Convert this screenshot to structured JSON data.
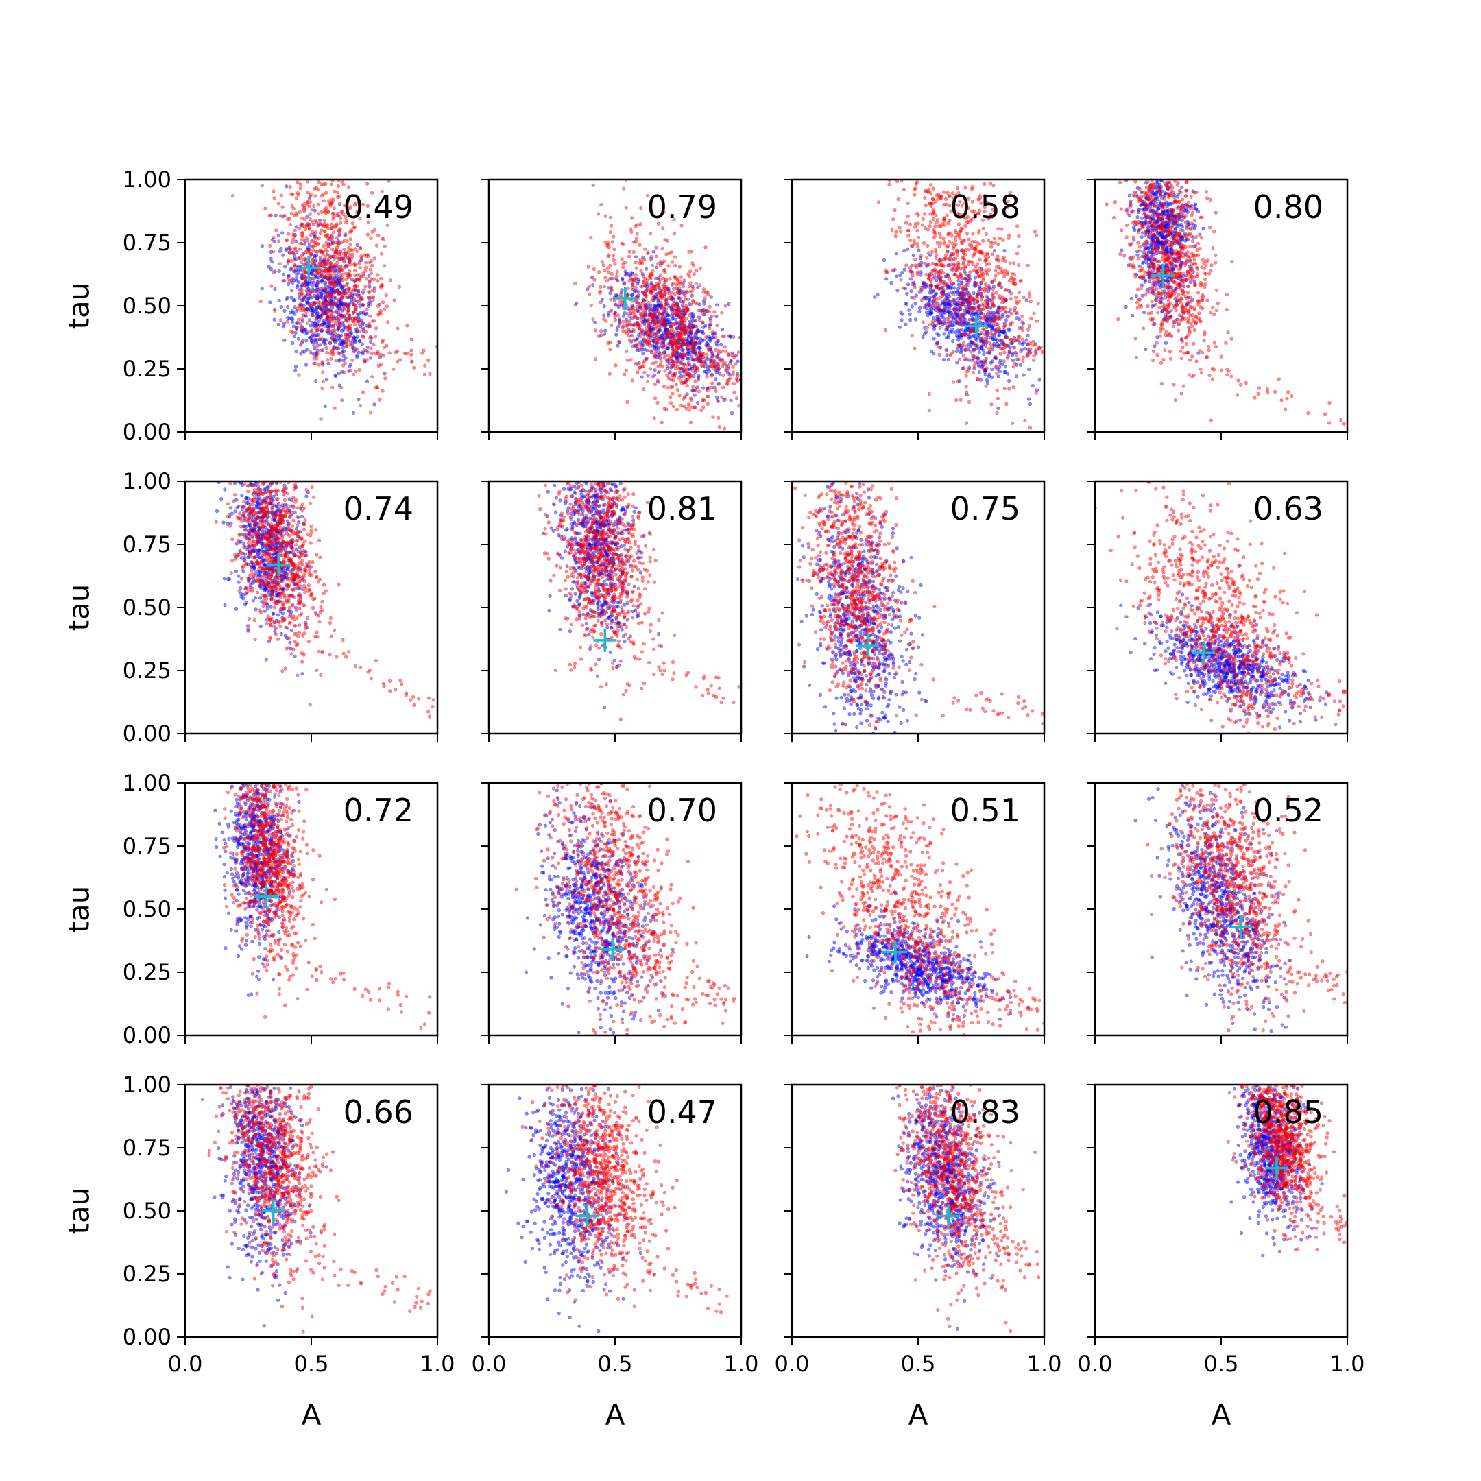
{
  "colors": {
    "series_blue": "#0000ff",
    "series_red": "#ff0000",
    "marker": "#17becf",
    "axes": "#000000",
    "background": "#ffffff"
  },
  "chart_data": {
    "type": "scatter",
    "layout": "4x4 grid of subplots, shared x and y axes",
    "xlabel": "A",
    "ylabel": "tau",
    "xlim": [
      0.0,
      1.0
    ],
    "ylim": [
      0.0,
      1.0
    ],
    "xticks": [
      "0.0",
      "0.5",
      "1.0"
    ],
    "yticks": [
      "0.00",
      "0.25",
      "0.50",
      "0.75",
      "1.00"
    ],
    "grid": false,
    "legend": "none",
    "series": [
      {
        "color": "blue",
        "marker": "dot"
      },
      {
        "color": "red",
        "marker": "dot"
      },
      {
        "color": "cyan",
        "marker": "plus"
      }
    ],
    "panels": [
      {
        "annotation": "0.49",
        "marker": [
          0.49,
          0.65
        ],
        "blue": {
          "center": [
            0.55,
            0.52
          ],
          "spread": [
            0.09,
            0.13
          ],
          "slope": -0.55
        },
        "red": {
          "center": [
            0.58,
            0.65
          ],
          "spread": [
            0.11,
            0.2
          ],
          "slope": -0.7
        },
        "red_tail": [
          [
            0.75,
            0.33
          ],
          [
            0.98,
            0.28
          ]
        ]
      },
      {
        "annotation": "0.79",
        "marker": [
          0.54,
          0.53
        ],
        "blue": {
          "center": [
            0.73,
            0.4
          ],
          "spread": [
            0.12,
            0.09
          ],
          "slope": -0.5
        },
        "red": {
          "center": [
            0.7,
            0.43
          ],
          "spread": [
            0.12,
            0.15
          ],
          "slope": -0.7
        },
        "red_tail": [
          [
            0.88,
            0.27
          ],
          [
            0.99,
            0.22
          ]
        ]
      },
      {
        "annotation": "0.58",
        "marker": [
          0.73,
          0.42
        ],
        "blue": {
          "center": [
            0.7,
            0.45
          ],
          "spread": [
            0.12,
            0.1
          ],
          "slope": -0.45
        },
        "red": {
          "center": [
            0.68,
            0.65
          ],
          "spread": [
            0.13,
            0.22
          ],
          "slope": -0.8
        },
        "red_tail": [
          [
            0.85,
            0.36
          ],
          [
            1.0,
            0.32
          ]
        ]
      },
      {
        "annotation": "0.80",
        "marker": [
          0.27,
          0.62
        ],
        "blue": {
          "center": [
            0.27,
            0.78
          ],
          "spread": [
            0.06,
            0.16
          ],
          "slope": -0.4
        },
        "red": {
          "center": [
            0.3,
            0.7
          ],
          "spread": [
            0.08,
            0.22
          ],
          "slope": -0.9
        },
        "red_tail": [
          [
            0.45,
            0.25
          ],
          [
            1.0,
            0.05
          ]
        ]
      },
      {
        "annotation": "0.74",
        "marker": [
          0.37,
          0.67
        ],
        "blue": {
          "center": [
            0.33,
            0.75
          ],
          "spread": [
            0.07,
            0.16
          ],
          "slope": -0.55
        },
        "red": {
          "center": [
            0.36,
            0.75
          ],
          "spread": [
            0.08,
            0.17
          ],
          "slope": -0.9
        },
        "red_tail": [
          [
            0.55,
            0.35
          ],
          [
            1.0,
            0.08
          ]
        ]
      },
      {
        "annotation": "0.81",
        "marker": [
          0.46,
          0.37
        ],
        "blue": {
          "center": [
            0.43,
            0.75
          ],
          "spread": [
            0.07,
            0.18
          ],
          "slope": -0.5
        },
        "red": {
          "center": [
            0.45,
            0.72
          ],
          "spread": [
            0.09,
            0.2
          ],
          "slope": -0.8
        },
        "red_tail": [
          [
            0.6,
            0.32
          ],
          [
            1.0,
            0.12
          ]
        ]
      },
      {
        "annotation": "0.75",
        "marker": [
          0.3,
          0.35
        ],
        "blue": {
          "center": [
            0.27,
            0.45
          ],
          "spread": [
            0.09,
            0.22
          ],
          "slope": -0.7
        },
        "red": {
          "center": [
            0.25,
            0.62
          ],
          "spread": [
            0.09,
            0.25
          ],
          "slope": -1.0
        },
        "red_tail": [
          [
            0.55,
            0.15
          ],
          [
            1.0,
            0.08
          ]
        ]
      },
      {
        "annotation": "0.63",
        "marker": [
          0.43,
          0.32
        ],
        "blue": {
          "center": [
            0.53,
            0.27
          ],
          "spread": [
            0.14,
            0.07
          ],
          "slope": -0.4
        },
        "red": {
          "center": [
            0.5,
            0.42
          ],
          "spread": [
            0.17,
            0.2
          ],
          "slope": -0.9
        },
        "red_tail": [
          [
            0.8,
            0.17
          ],
          [
            1.0,
            0.13
          ]
        ]
      },
      {
        "annotation": "0.72",
        "marker": [
          0.32,
          0.55
        ],
        "blue": {
          "center": [
            0.29,
            0.72
          ],
          "spread": [
            0.06,
            0.18
          ],
          "slope": -0.5
        },
        "red": {
          "center": [
            0.33,
            0.72
          ],
          "spread": [
            0.07,
            0.2
          ],
          "slope": -1.0
        },
        "red_tail": [
          [
            0.5,
            0.25
          ],
          [
            1.0,
            0.1
          ]
        ]
      },
      {
        "annotation": "0.70",
        "marker": [
          0.49,
          0.34
        ],
        "blue": {
          "center": [
            0.42,
            0.5
          ],
          "spread": [
            0.1,
            0.18
          ],
          "slope": -0.8
        },
        "red": {
          "center": [
            0.5,
            0.55
          ],
          "spread": [
            0.14,
            0.23
          ],
          "slope": -0.9
        },
        "red_tail": [
          [
            0.75,
            0.23
          ],
          [
            1.0,
            0.13
          ]
        ]
      },
      {
        "annotation": "0.51",
        "marker": [
          0.41,
          0.33
        ],
        "blue": {
          "center": [
            0.5,
            0.28
          ],
          "spread": [
            0.14,
            0.07
          ],
          "slope": -0.35
        },
        "red": {
          "center": [
            0.45,
            0.48
          ],
          "spread": [
            0.18,
            0.22
          ],
          "slope": -1.1
        },
        "red_tail": [
          [
            0.8,
            0.15
          ],
          [
            1.0,
            0.08
          ]
        ]
      },
      {
        "annotation": "0.52",
        "marker": [
          0.58,
          0.43
        ],
        "blue": {
          "center": [
            0.5,
            0.5
          ],
          "spread": [
            0.1,
            0.17
          ],
          "slope": -0.8
        },
        "red": {
          "center": [
            0.55,
            0.6
          ],
          "spread": [
            0.12,
            0.22
          ],
          "slope": -0.9
        },
        "red_tail": [
          [
            0.78,
            0.27
          ],
          [
            1.0,
            0.17
          ]
        ]
      },
      {
        "annotation": "0.66",
        "marker": [
          0.35,
          0.5
        ],
        "blue": {
          "center": [
            0.3,
            0.68
          ],
          "spread": [
            0.07,
            0.2
          ],
          "slope": -0.6
        },
        "red": {
          "center": [
            0.35,
            0.72
          ],
          "spread": [
            0.09,
            0.2
          ],
          "slope": -0.9
        },
        "red_tail": [
          [
            0.5,
            0.3
          ],
          [
            1.0,
            0.12
          ]
        ]
      },
      {
        "annotation": "0.47",
        "marker": [
          0.39,
          0.48
        ],
        "blue": {
          "center": [
            0.32,
            0.62
          ],
          "spread": [
            0.08,
            0.2
          ],
          "slope": -0.5
        },
        "red": {
          "center": [
            0.45,
            0.65
          ],
          "spread": [
            0.1,
            0.2
          ],
          "slope": -0.7
        },
        "red_tail": [
          [
            0.6,
            0.3
          ],
          [
            0.98,
            0.12
          ]
        ]
      },
      {
        "annotation": "0.83",
        "marker": [
          0.62,
          0.48
        ],
        "blue": {
          "center": [
            0.6,
            0.62
          ],
          "spread": [
            0.08,
            0.16
          ],
          "slope": -0.6
        },
        "red": {
          "center": [
            0.63,
            0.68
          ],
          "spread": [
            0.1,
            0.2
          ],
          "slope": -0.8
        },
        "red_tail": [
          [
            0.8,
            0.37
          ],
          [
            1.0,
            0.27
          ]
        ]
      },
      {
        "annotation": "0.85",
        "marker": [
          0.72,
          0.67
        ],
        "blue": {
          "center": [
            0.7,
            0.75
          ],
          "spread": [
            0.06,
            0.14
          ],
          "slope": -0.6
        },
        "red": {
          "center": [
            0.74,
            0.8
          ],
          "spread": [
            0.07,
            0.14
          ],
          "slope": -0.8
        },
        "red_tail": [
          [
            0.85,
            0.5
          ],
          [
            1.0,
            0.42
          ]
        ]
      }
    ]
  }
}
